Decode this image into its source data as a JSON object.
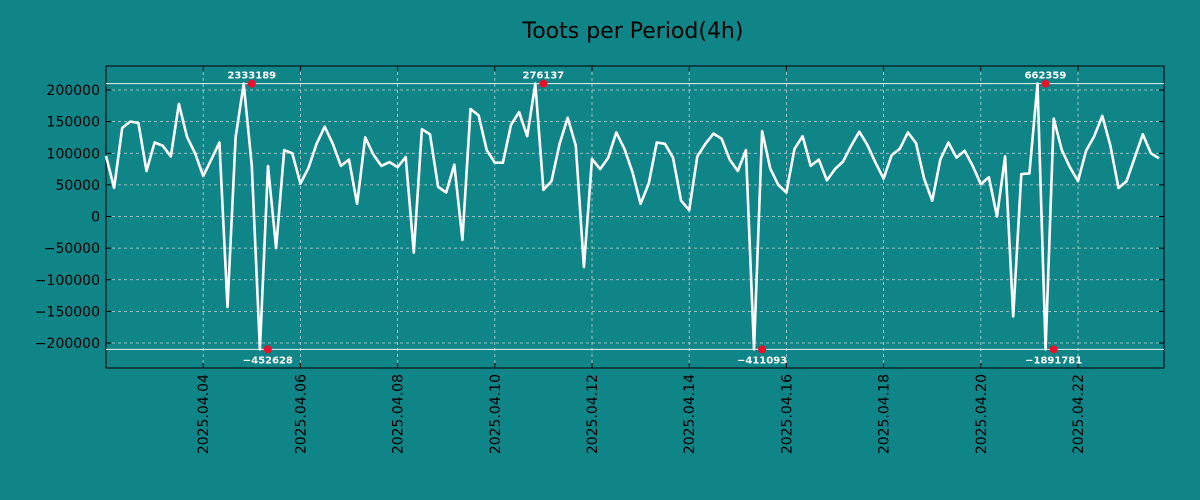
{
  "chart_data": {
    "type": "line",
    "title": "Toots per Period(4h)",
    "xlabel": "",
    "ylabel": "",
    "ylim": [
      -240000,
      240000
    ],
    "x_start": "2025.04.02",
    "step_days": 0.16667,
    "x_range_days": [
      0,
      21.7
    ],
    "yticks": [
      200000,
      150000,
      100000,
      50000,
      0,
      -50000,
      -100000,
      -150000,
      -200000
    ],
    "ytick_labels": [
      "200000",
      "150000",
      "100000",
      "50000",
      "0",
      "−50000",
      "−100000",
      "−150000",
      "−200000"
    ],
    "xticks_days": [
      2,
      4,
      6,
      8,
      10,
      12,
      14,
      16,
      18,
      20
    ],
    "xtick_labels": [
      "2025.04.04",
      "2025.04.06",
      "2025.04.08",
      "2025.04.10",
      "2025.04.12",
      "2025.04.14",
      "2025.04.16",
      "2025.04.18",
      "2025.04.20",
      "2025.04.22"
    ],
    "ref_lines": [
      210000,
      -210000
    ],
    "series": [
      {
        "name": "Toots",
        "color": "#ffffff",
        "values": [
          96000,
          45000,
          140000,
          150000,
          148000,
          72000,
          117000,
          112000,
          95000,
          178000,
          126000,
          100000,
          64000,
          90000,
          117000,
          -143000,
          125000,
          210000,
          80000,
          -210000,
          80000,
          -50000,
          105000,
          100000,
          52000,
          77000,
          115000,
          142000,
          115000,
          80000,
          90000,
          20000,
          125000,
          98000,
          80000,
          86000,
          78000,
          94000,
          -57000,
          138000,
          130000,
          47000,
          38000,
          82000,
          -37000,
          170000,
          160000,
          105000,
          85000,
          85000,
          145000,
          165000,
          127000,
          210000,
          42000,
          56000,
          115000,
          156000,
          112000,
          -80000,
          91000,
          75000,
          93000,
          133000,
          107000,
          70000,
          20000,
          52000,
          117000,
          115000,
          93000,
          25000,
          10000,
          95000,
          115000,
          131000,
          123000,
          90000,
          72000,
          105000,
          -210000,
          135000,
          76000,
          50000,
          38000,
          107000,
          127000,
          80000,
          90000,
          57000,
          75000,
          87000,
          112000,
          134000,
          113000,
          85000,
          60000,
          97000,
          107000,
          133000,
          116000,
          60000,
          25000,
          90000,
          117000,
          93000,
          104000,
          80000,
          51000,
          62000,
          0,
          95000,
          -158000,
          67000,
          68000,
          210000,
          -210000,
          155000,
          105000,
          78000,
          56000,
          104000,
          127000,
          159000,
          112000,
          45000,
          56000,
          93000,
          130000,
          100000,
          92000
        ]
      }
    ],
    "annotations": [
      {
        "label": "2333189",
        "x_day": 3.0,
        "y": 210000,
        "position": "above"
      },
      {
        "label": "−452628",
        "x_day": 3.33,
        "y": -210000,
        "position": "below"
      },
      {
        "label": "276137",
        "x_day": 9.0,
        "y": 210000,
        "position": "above"
      },
      {
        "label": "−411093",
        "x_day": 13.5,
        "y": -210000,
        "position": "below"
      },
      {
        "label": "662359",
        "x_day": 19.33,
        "y": 210000,
        "position": "above"
      },
      {
        "label": "−1891781",
        "x_day": 19.5,
        "y": -210000,
        "position": "below"
      }
    ]
  }
}
